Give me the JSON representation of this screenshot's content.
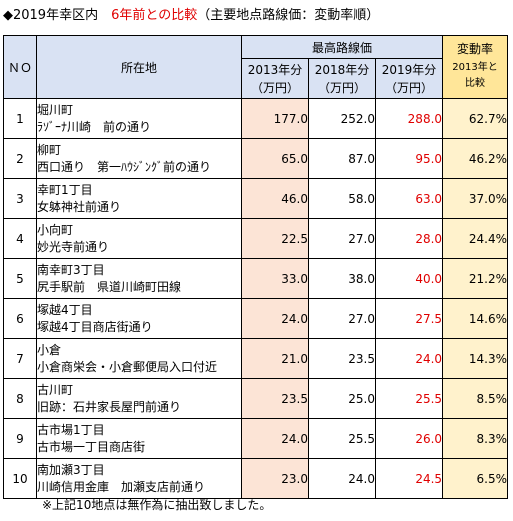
{
  "title": {
    "prefix": "◆2019年幸区内　",
    "highlight": "6年前との比較",
    "suffix": "（主要地点路線価：変動率順）"
  },
  "header": {
    "no": "ＮＯ",
    "location": "所在地",
    "group": "最高路線価",
    "years": [
      "2013年分",
      "2018年分",
      "2019年分"
    ],
    "unit": "（万円）",
    "rate_label": "変動率",
    "rate_sub1": "2013年と",
    "rate_sub2": "比較"
  },
  "rows": [
    {
      "no": "1",
      "loc1": "堀川町",
      "loc2": "ﾗｿﾞｰﾅ川崎　前の通り",
      "v2013": "177.0",
      "v2018": "252.0",
      "v2019": "288.0",
      "rate": "62.7%"
    },
    {
      "no": "2",
      "loc1": "柳町",
      "loc2": "西口通り　第一ﾊｳｼﾞﾝｸﾞ前の通り",
      "v2013": "65.0",
      "v2018": "87.0",
      "v2019": "95.0",
      "rate": "46.2%"
    },
    {
      "no": "3",
      "loc1": "幸町1丁目",
      "loc2": "女躰神社前通り",
      "v2013": "46.0",
      "v2018": "58.0",
      "v2019": "63.0",
      "rate": "37.0%"
    },
    {
      "no": "4",
      "loc1": "小向町",
      "loc2": "妙光寺前通り",
      "v2013": "22.5",
      "v2018": "27.0",
      "v2019": "28.0",
      "rate": "24.4%"
    },
    {
      "no": "5",
      "loc1": "南幸町3丁目",
      "loc2": "尻手駅前　県道川崎町田線",
      "v2013": "33.0",
      "v2018": "38.0",
      "v2019": "40.0",
      "rate": "21.2%"
    },
    {
      "no": "6",
      "loc1": "塚越4丁目",
      "loc2": "塚越4丁目商店街通り",
      "v2013": "24.0",
      "v2018": "27.0",
      "v2019": "27.5",
      "rate": "14.6%"
    },
    {
      "no": "7",
      "loc1": "小倉",
      "loc2": "小倉商栄会・小倉郵便局入口付近",
      "v2013": "21.0",
      "v2018": "23.5",
      "v2019": "24.0",
      "rate": "14.3%"
    },
    {
      "no": "8",
      "loc1": "古川町",
      "loc2": "旧跡：石井家長屋門前通り",
      "v2013": "23.5",
      "v2018": "25.0",
      "v2019": "25.5",
      "rate": "8.5%"
    },
    {
      "no": "9",
      "loc1": "古市場1丁目",
      "loc2": "古市場一丁目商店街",
      "v2013": "24.0",
      "v2018": "25.5",
      "v2019": "26.0",
      "rate": "8.3%"
    },
    {
      "no": "10",
      "loc1": "南加瀬3丁目",
      "loc2": "川崎信用金庫　加瀬支店前通り",
      "v2013": "23.0",
      "v2018": "24.0",
      "v2019": "24.5",
      "rate": "6.5%"
    }
  ],
  "note": "※上記10地点は無作為に抽出致しました。",
  "colors": {
    "header_bg": "#d9e2f3",
    "rate_header_bg": "#ffe699",
    "rate_cell_bg": "#fff2cc",
    "col2013_bg": "#fce4d6",
    "accent_red": "#e00000"
  }
}
